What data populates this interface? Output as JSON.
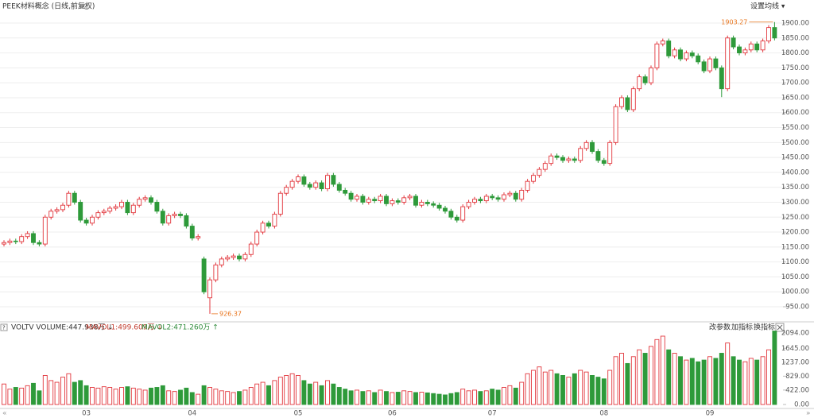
{
  "chart_data": [
    {
      "type": "candlestick",
      "title": "PEEK材料概念 (日线,前复权)",
      "menu": "设置均线 ▾",
      "up_color": "#e2363c",
      "down_color": "#2e9a3a",
      "categories": [
        null,
        null,
        null,
        null,
        null,
        null,
        null,
        null,
        null,
        null,
        null,
        null,
        null,
        null,
        "03",
        null,
        null,
        null,
        null,
        null,
        null,
        null,
        null,
        null,
        null,
        null,
        null,
        null,
        null,
        null,
        null,
        null,
        "04",
        null,
        null,
        null,
        null,
        null,
        null,
        null,
        null,
        null,
        null,
        null,
        null,
        null,
        null,
        null,
        null,
        null,
        "05",
        null,
        null,
        null,
        null,
        null,
        null,
        null,
        null,
        null,
        null,
        null,
        null,
        null,
        null,
        null,
        "06",
        null,
        null,
        null,
        null,
        null,
        null,
        null,
        null,
        null,
        null,
        null,
        null,
        null,
        null,
        null,
        null,
        "07",
        null,
        null,
        null,
        null,
        null,
        null,
        null,
        null,
        null,
        null,
        null,
        null,
        null,
        null,
        null,
        null,
        null,
        null,
        "08",
        null,
        null,
        null,
        null,
        null,
        null,
        null,
        null,
        null,
        null,
        null,
        null,
        null,
        null,
        null,
        null,
        null,
        "09",
        null,
        null,
        null,
        null,
        null,
        null,
        null,
        null,
        null,
        null,
        null
      ],
      "open": [
        1160,
        1165,
        1170,
        1168,
        1185,
        1195,
        1165,
        1160,
        1250,
        1270,
        1275,
        1290,
        1330,
        1300,
        1240,
        1230,
        1250,
        1265,
        1270,
        1280,
        1285,
        1300,
        1265,
        1290,
        1310,
        1315,
        1300,
        1270,
        1230,
        1255,
        1260,
        1255,
        1220,
        1180,
        1110,
        980,
        1040,
        1090,
        1110,
        1115,
        1120,
        1110,
        1125,
        1160,
        1200,
        1230,
        1220,
        1260,
        1330,
        1350,
        1370,
        1385,
        1360,
        1350,
        1365,
        1345,
        1390,
        1360,
        1340,
        1330,
        1310,
        1320,
        1300,
        1310,
        1305,
        1320,
        1295,
        1305,
        1300,
        1315,
        1320,
        1290,
        1300,
        1295,
        1290,
        1280,
        1270,
        1250,
        1240,
        1285,
        1300,
        1310,
        1305,
        1320,
        1315,
        1310,
        1325,
        1330,
        1310,
        1340,
        1370,
        1390,
        1410,
        1430,
        1455,
        1450,
        1440,
        1445,
        1440,
        1480,
        1500,
        1470,
        1440,
        1430,
        1500,
        1620,
        1650,
        1610,
        1680,
        1720,
        1700,
        1750,
        1830,
        1840,
        1790,
        1810,
        1780,
        1800,
        1790,
        1770,
        1740,
        1780,
        1750,
        1680,
        1850,
        1820,
        1800,
        1810,
        1830,
        1810,
        1840,
        1885
      ],
      "high": [
        1173,
        1178,
        1178,
        1193,
        1203,
        1203,
        1173,
        1258,
        1278,
        1283,
        1298,
        1338,
        1338,
        1308,
        1248,
        1258,
        1273,
        1278,
        1288,
        1293,
        1308,
        1308,
        1298,
        1318,
        1323,
        1323,
        1308,
        1278,
        1263,
        1268,
        1268,
        1263,
        1228,
        1193,
        1118,
        1048,
        1098,
        1118,
        1123,
        1128,
        1128,
        1133,
        1168,
        1208,
        1238,
        1238,
        1268,
        1338,
        1358,
        1378,
        1393,
        1393,
        1368,
        1373,
        1373,
        1398,
        1398,
        1368,
        1348,
        1338,
        1328,
        1328,
        1318,
        1318,
        1328,
        1328,
        1313,
        1313,
        1323,
        1328,
        1328,
        1308,
        1308,
        1303,
        1298,
        1288,
        1278,
        1258,
        1293,
        1308,
        1318,
        1318,
        1328,
        1328,
        1323,
        1333,
        1338,
        1338,
        1348,
        1378,
        1398,
        1418,
        1438,
        1463,
        1463,
        1458,
        1453,
        1453,
        1488,
        1508,
        1508,
        1478,
        1448,
        1508,
        1628,
        1658,
        1658,
        1688,
        1728,
        1728,
        1758,
        1838,
        1848,
        1848,
        1818,
        1818,
        1808,
        1808,
        1798,
        1778,
        1788,
        1788,
        1758,
        1858,
        1858,
        1828,
        1818,
        1838,
        1838,
        1848,
        1893,
        1903.27
      ],
      "low": [
        1152,
        1157,
        1160,
        1160,
        1177,
        1157,
        1152,
        1152,
        1242,
        1262,
        1267,
        1282,
        1292,
        1232,
        1222,
        1222,
        1242,
        1257,
        1262,
        1272,
        1277,
        1257,
        1257,
        1282,
        1302,
        1292,
        1262,
        1222,
        1222,
        1247,
        1247,
        1212,
        1172,
        1172,
        992,
        926.37,
        1032,
        1082,
        1102,
        1107,
        1102,
        1102,
        1117,
        1152,
        1192,
        1212,
        1212,
        1252,
        1322,
        1342,
        1362,
        1352,
        1342,
        1342,
        1337,
        1337,
        1352,
        1332,
        1322,
        1302,
        1302,
        1292,
        1292,
        1297,
        1297,
        1287,
        1287,
        1292,
        1292,
        1307,
        1282,
        1282,
        1287,
        1282,
        1272,
        1262,
        1242,
        1232,
        1232,
        1277,
        1292,
        1297,
        1297,
        1307,
        1302,
        1302,
        1317,
        1302,
        1302,
        1332,
        1362,
        1382,
        1402,
        1422,
        1442,
        1432,
        1432,
        1432,
        1432,
        1472,
        1462,
        1432,
        1422,
        1422,
        1492,
        1612,
        1602,
        1602,
        1672,
        1692,
        1692,
        1742,
        1822,
        1782,
        1782,
        1772,
        1772,
        1782,
        1762,
        1732,
        1732,
        1742,
        1652,
        1672,
        1812,
        1792,
        1792,
        1802,
        1802,
        1802,
        1832,
        1842
      ],
      "close": [
        1165,
        1170,
        1168,
        1185,
        1195,
        1165,
        1160,
        1250,
        1270,
        1275,
        1290,
        1330,
        1300,
        1240,
        1230,
        1250,
        1265,
        1270,
        1280,
        1285,
        1300,
        1265,
        1290,
        1310,
        1315,
        1300,
        1270,
        1230,
        1255,
        1260,
        1255,
        1220,
        1180,
        1185,
        1000,
        1040,
        1090,
        1110,
        1115,
        1120,
        1110,
        1125,
        1160,
        1200,
        1230,
        1220,
        1260,
        1330,
        1350,
        1370,
        1385,
        1360,
        1350,
        1365,
        1345,
        1390,
        1360,
        1340,
        1330,
        1310,
        1320,
        1300,
        1310,
        1305,
        1320,
        1295,
        1305,
        1300,
        1315,
        1320,
        1290,
        1300,
        1295,
        1290,
        1280,
        1270,
        1250,
        1240,
        1285,
        1300,
        1310,
        1305,
        1320,
        1315,
        1310,
        1325,
        1330,
        1310,
        1340,
        1370,
        1390,
        1410,
        1430,
        1455,
        1450,
        1440,
        1445,
        1440,
        1480,
        1500,
        1470,
        1440,
        1430,
        1500,
        1620,
        1650,
        1610,
        1680,
        1720,
        1700,
        1750,
        1830,
        1840,
        1790,
        1810,
        1780,
        1800,
        1790,
        1770,
        1740,
        1780,
        1750,
        1680,
        1850,
        1820,
        1800,
        1810,
        1830,
        1810,
        1840,
        1885,
        1850
      ],
      "ylim": [
        900,
        1950
      ],
      "yticks": [
        {
          "value": 950,
          "label": "950.00"
        },
        {
          "value": 1000,
          "label": "1000.00"
        },
        {
          "value": 1050,
          "label": "1050.00"
        },
        {
          "value": 1100,
          "label": "1100.00"
        },
        {
          "value": 1150,
          "label": "1150.00"
        },
        {
          "value": 1200,
          "label": "1200.00"
        },
        {
          "value": 1250,
          "label": "1250.00"
        },
        {
          "value": 1300,
          "label": "1300.00"
        },
        {
          "value": 1350,
          "label": "1350.00"
        },
        {
          "value": 1400,
          "label": "1400.00"
        },
        {
          "value": 1450,
          "label": "1450.00"
        },
        {
          "value": 1500,
          "label": "1500.00"
        },
        {
          "value": 1550,
          "label": "1550.00"
        },
        {
          "value": 1600,
          "label": "1600.00"
        },
        {
          "value": 1650,
          "label": "1650.00"
        },
        {
          "value": 1700,
          "label": "1700.00"
        },
        {
          "value": 1750,
          "label": "1750.00"
        },
        {
          "value": 1800,
          "label": "1800.00"
        },
        {
          "value": 1850,
          "label": "1850.00"
        },
        {
          "value": 1900,
          "label": "1900.00"
        }
      ],
      "grid": true,
      "annotation_color": "#e8741c"
    },
    {
      "type": "bar",
      "title": "VOLTV VOLUME:447.938万 ↓",
      "subtitle": "MAVOL1:499.609万 ↓",
      "note": "MAVOL2:471.260万 ↑",
      "buttons": [
        "改参数",
        "加指标",
        "换指标"
      ],
      "values": [
        600,
        450,
        500,
        480,
        550,
        620,
        400,
        850,
        700,
        650,
        800,
        900,
        650,
        700,
        550,
        500,
        480,
        520,
        500,
        450,
        500,
        520,
        480,
        450,
        420,
        480,
        500,
        550,
        400,
        380,
        420,
        480,
        350,
        300,
        550,
        500,
        450,
        400,
        380,
        350,
        380,
        420,
        500,
        600,
        650,
        550,
        700,
        800,
        850,
        900,
        850,
        700,
        600,
        650,
        550,
        700,
        600,
        500,
        450,
        400,
        420,
        380,
        400,
        350,
        420,
        380,
        350,
        360,
        400,
        380,
        350,
        360,
        340,
        320,
        300,
        280,
        320,
        350,
        450,
        400,
        420,
        380,
        400,
        450,
        420,
        500,
        550,
        480,
        650,
        900,
        1000,
        1100,
        950,
        1000,
        900,
        850,
        800,
        900,
        1000,
        950,
        850,
        800,
        750,
        1000,
        1400,
        1500,
        1200,
        1400,
        1600,
        1500,
        1700,
        1900,
        2000,
        1600,
        1500,
        1400,
        1300,
        1350,
        1250,
        1300,
        1400,
        1350,
        1500,
        1800,
        1400,
        1300,
        1250,
        1350,
        1300,
        1400,
        1600,
        2150
      ],
      "ylim": [
        0,
        2200
      ],
      "yticks": [
        {
          "value": 0,
          "label": "0.00"
        },
        {
          "value": 422,
          "label": "422.00"
        },
        {
          "value": 829,
          "label": "829.00"
        },
        {
          "value": 1237,
          "label": "1237.00"
        },
        {
          "value": 1645,
          "label": "1645.00"
        },
        {
          "value": 2094,
          "label": "2094.00"
        }
      ]
    }
  ]
}
